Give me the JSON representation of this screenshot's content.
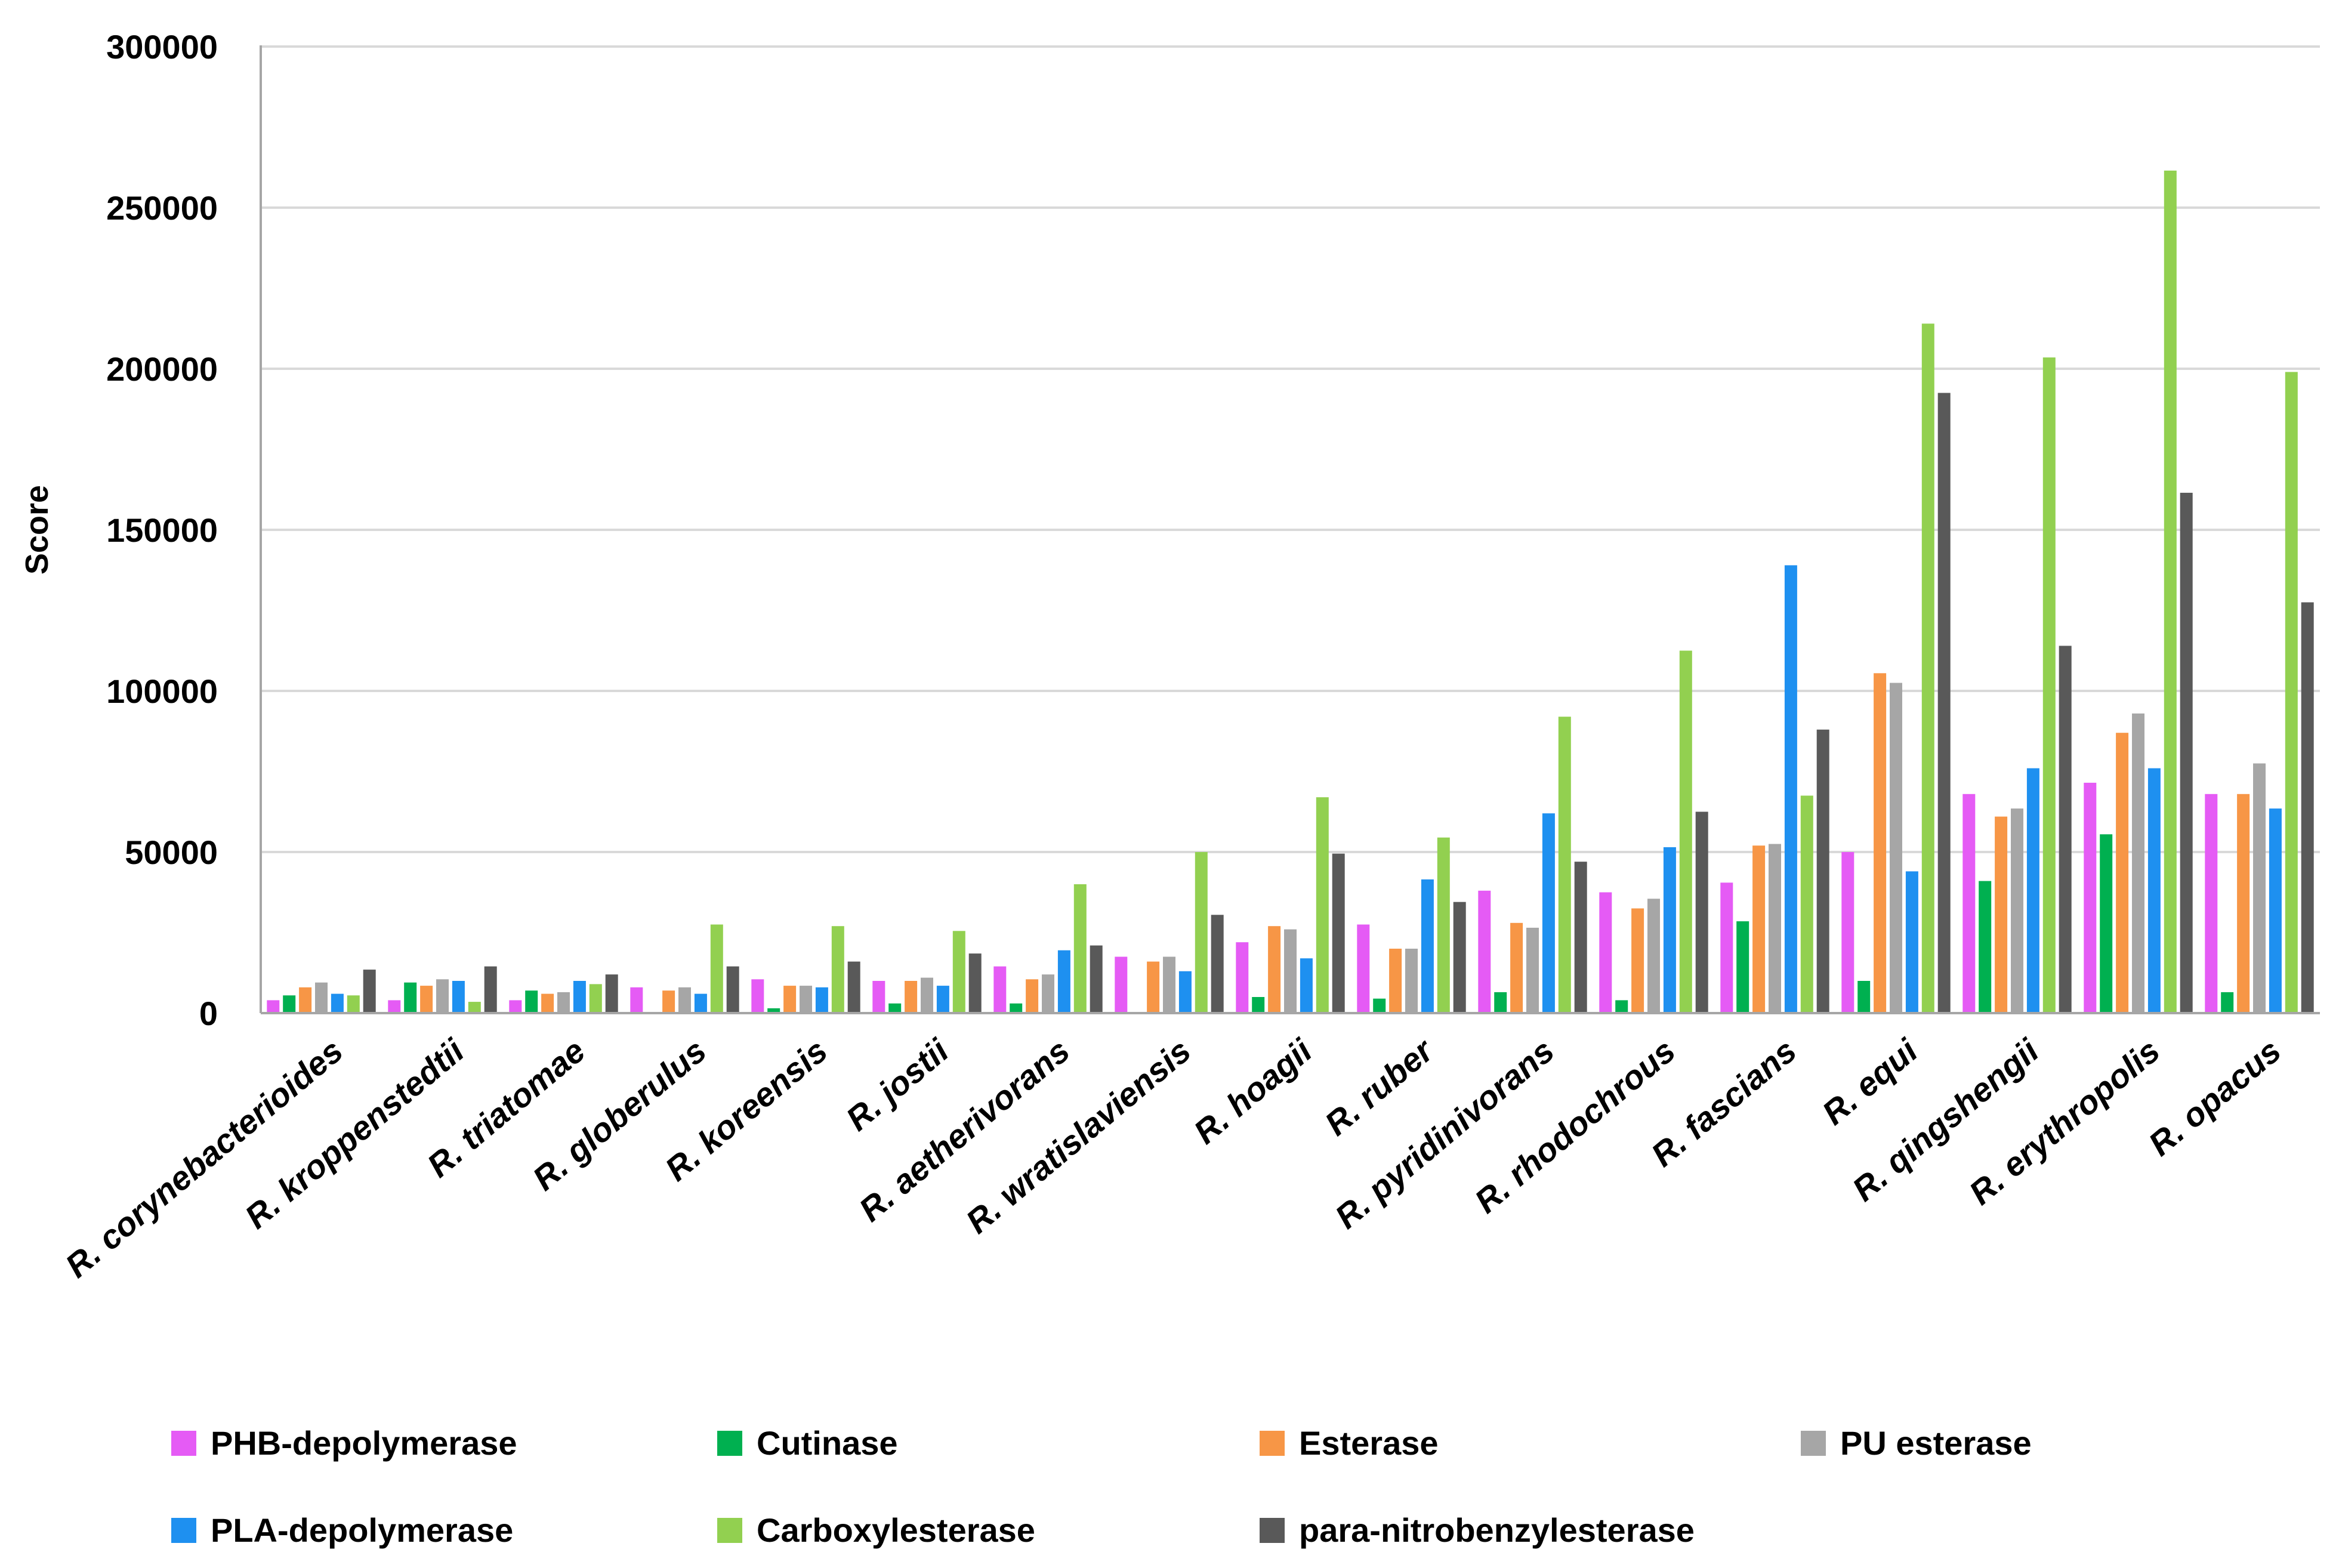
{
  "chart_data": {
    "type": "bar",
    "ylabel": "Score",
    "xlabel": "",
    "ylim": [
      0,
      300000
    ],
    "yticks": [
      0,
      50000,
      100000,
      150000,
      200000,
      250000,
      300000
    ],
    "ytick_labels": [
      "0",
      "50000",
      "100000",
      "150000",
      "200000",
      "250000",
      "300000"
    ],
    "grid": true,
    "legend_position": "bottom",
    "categories": [
      "R. corynebacterioides",
      "R. kroppenstedtii",
      "R. triatomae",
      "R. globerulus",
      "R. koreensis",
      "R. jostii",
      "R. aetherivorans",
      "R. wratislaviensis",
      "R. hoagii",
      "R. ruber",
      "R. pyridinivorans",
      "R. rhodochrous",
      "R. fascians",
      "R. equi",
      "R. qingshengii",
      "R. erythropolis",
      "R. opacus"
    ],
    "series": [
      {
        "name": "PHB-depolymerase",
        "color": "#E55BF5",
        "values": [
          4000,
          4000,
          4000,
          8000,
          10500,
          10000,
          14500,
          17500,
          22000,
          27500,
          38000,
          37500,
          40500,
          50000,
          68000,
          71500,
          68000
        ]
      },
      {
        "name": "Cutinase",
        "color": "#00B050",
        "values": [
          5500,
          9500,
          7000,
          0,
          1500,
          3000,
          3000,
          0,
          5000,
          4500,
          6500,
          4000,
          28500,
          10000,
          41000,
          55500,
          6500
        ]
      },
      {
        "name": "Esterase",
        "color": "#F79646",
        "values": [
          8000,
          8500,
          6000,
          7000,
          8500,
          10000,
          10500,
          16000,
          27000,
          20000,
          28000,
          32500,
          52000,
          105500,
          61000,
          87000,
          68000
        ]
      },
      {
        "name": "PU esterase",
        "color": "#A6A6A6",
        "values": [
          9500,
          10500,
          6500,
          8000,
          8500,
          11000,
          12000,
          17500,
          26000,
          20000,
          26500,
          35500,
          52500,
          102500,
          63500,
          93000,
          77500
        ]
      },
      {
        "name": "PLA-depolymerase",
        "color": "#1E90F0",
        "values": [
          6000,
          10000,
          10000,
          6000,
          8000,
          8500,
          19500,
          13000,
          17000,
          41500,
          62000,
          51500,
          139000,
          44000,
          76000,
          76000,
          63500
        ]
      },
      {
        "name": "Carboxylesterase",
        "color": "#92D050",
        "values": [
          5500,
          3500,
          9000,
          27500,
          27000,
          25500,
          40000,
          50000,
          67000,
          54500,
          92000,
          112500,
          67500,
          214000,
          203500,
          261500,
          199000
        ]
      },
      {
        "name": "para-nitrobenzylesterase",
        "color": "#595959",
        "values": [
          13500,
          14500,
          12000,
          14500,
          16000,
          18500,
          21000,
          30500,
          49500,
          34500,
          47000,
          62500,
          88000,
          192500,
          114000,
          161500,
          127500
        ]
      }
    ]
  }
}
